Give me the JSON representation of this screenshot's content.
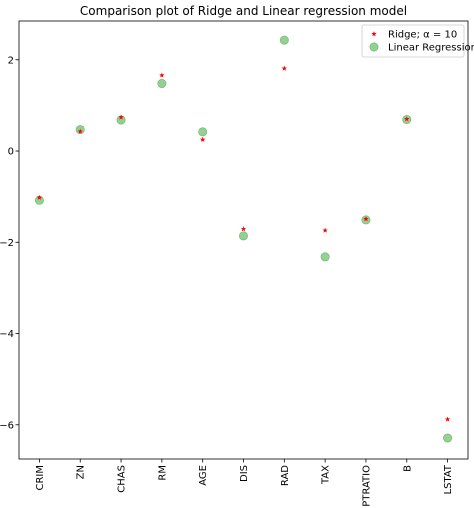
{
  "chart_data": {
    "type": "scatter",
    "title": "Comparison plot of Ridge and Linear regression model",
    "xlabel": "",
    "ylabel": "",
    "categories": [
      "CRIM",
      "ZN",
      "CHAS",
      "RM",
      "AGE",
      "DIS",
      "RAD",
      "TAX",
      "PTRATIO",
      "B",
      "LSTAT"
    ],
    "ylim": [
      -6.75,
      2.85
    ],
    "yticks": [
      2,
      0,
      -2,
      -4,
      -6
    ],
    "ytick_labels": [
      "2",
      "0",
      "−2",
      "−4",
      "−6"
    ],
    "grid": false,
    "legend_position": "top-right",
    "series": [
      {
        "name": "Ridge; α = 10",
        "marker": "star",
        "color": "#ff0000",
        "values": [
          -1.02,
          0.43,
          0.74,
          1.66,
          0.25,
          -1.71,
          1.81,
          -1.74,
          -1.49,
          0.7,
          -5.88
        ]
      },
      {
        "name": "Linear Regression",
        "marker": "circle",
        "color": "#2ca02c",
        "values": [
          -1.08,
          0.47,
          0.68,
          1.48,
          0.42,
          -1.86,
          2.43,
          -2.32,
          -1.51,
          0.69,
          -6.29
        ]
      }
    ]
  }
}
